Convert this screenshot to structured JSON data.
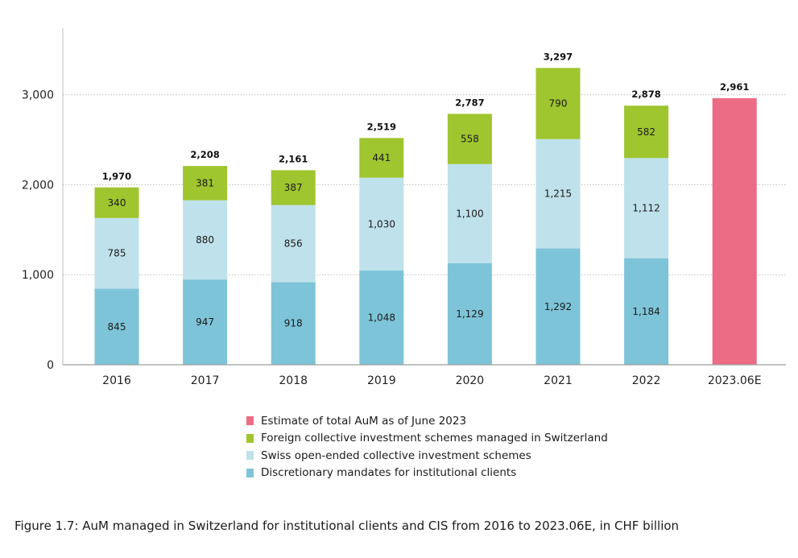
{
  "chart_data": {
    "type": "bar",
    "stacked": true,
    "categories": [
      "2016",
      "2017",
      "2018",
      "2019",
      "2020",
      "2021",
      "2022",
      "2023.06E"
    ],
    "series": [
      {
        "name": "Discretionary mandates for institutional clients",
        "color": "#7ec4d8",
        "values": [
          845,
          947,
          918,
          1048,
          1129,
          1292,
          1184,
          null
        ],
        "labels": [
          "845",
          "947",
          "918",
          "1,048",
          "1,129",
          "1,292",
          "1,184",
          ""
        ]
      },
      {
        "name": "Swiss open-ended collective investment schemes",
        "color": "#bfe1eb",
        "values": [
          785,
          880,
          856,
          1030,
          1100,
          1215,
          1112,
          null
        ],
        "labels": [
          "785",
          "880",
          "856",
          "1,030",
          "1,100",
          "1,215",
          "1,112",
          ""
        ]
      },
      {
        "name": "Foreign collective investment schemes managed in Switzerland",
        "color": "#9fc52f",
        "values": [
          340,
          381,
          387,
          441,
          558,
          790,
          582,
          null
        ],
        "labels": [
          "340",
          "381",
          "387",
          "441",
          "558",
          "790",
          "582",
          ""
        ]
      },
      {
        "name": "Estimate of total AuM as of June 2023",
        "color": "#ec6b85",
        "values": [
          null,
          null,
          null,
          null,
          null,
          null,
          null,
          2961
        ],
        "labels": [
          "",
          "",
          "",
          "",
          "",
          "",
          "",
          ""
        ]
      }
    ],
    "totals": [
      1970,
      2208,
      2161,
      2519,
      2787,
      3297,
      2878,
      2961
    ],
    "total_labels": [
      "1,970",
      "2,208",
      "2,161",
      "2,519",
      "2,787",
      "3,297",
      "2,878",
      "2,961"
    ],
    "yticks": [
      0,
      1000,
      2000,
      3000
    ],
    "ytick_labels": [
      "0",
      "1,000",
      "2,000",
      "3,000"
    ],
    "ylim": [
      0,
      3700
    ],
    "grid": true,
    "legend_placement": "bottom",
    "legend_order": [
      3,
      2,
      1,
      0
    ]
  },
  "caption": "Figure 1.7: AuM managed in Switzerland for institutional clients and CIS from 2016 to 2023.06E, in CHF billion"
}
